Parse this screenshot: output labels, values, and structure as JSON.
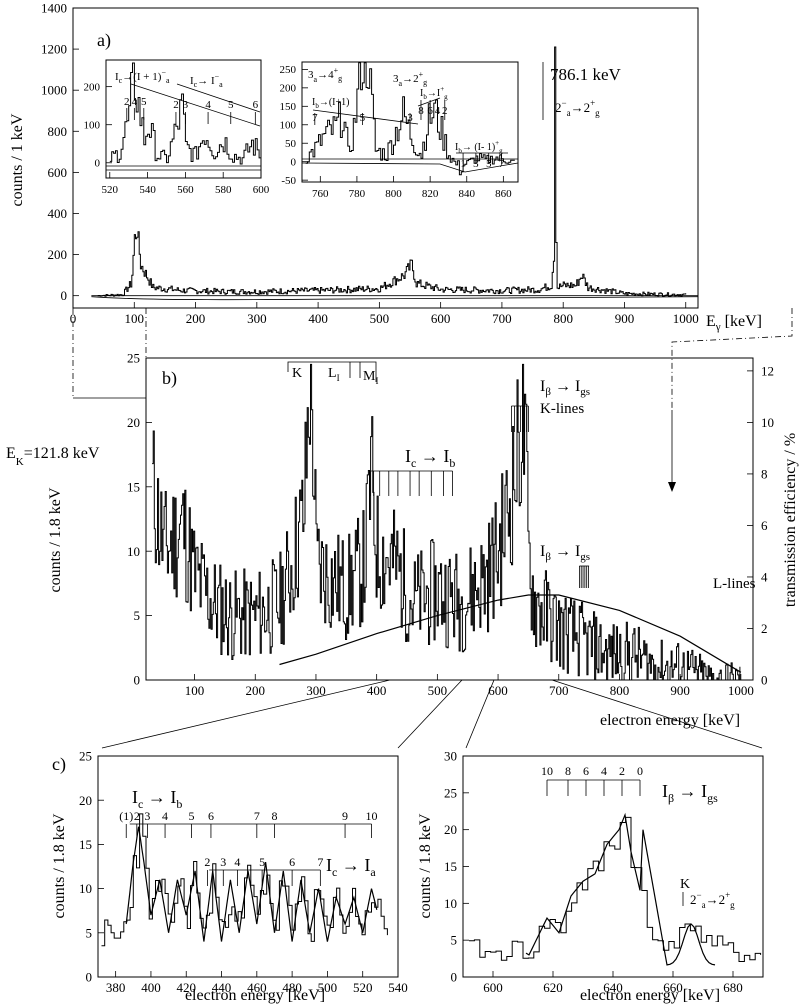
{
  "panels": {
    "a": {
      "label": "a)",
      "ylabel": "counts / 1 keV",
      "xlabel": "Eγ [keV]",
      "yticks": [
        "0",
        "200",
        "400",
        "600",
        "800",
        "1000",
        "1200",
        "1400"
      ],
      "xticks": [
        "0",
        "100",
        "200",
        "300",
        "400",
        "500",
        "600",
        "700",
        "800",
        "900",
        "1000"
      ],
      "peak_energy": "786.1 keV",
      "peak_transition": "2−a → 2+g",
      "inset1": {
        "yticks": [
          "0",
          "100",
          "200"
        ],
        "xticks": [
          "520",
          "540",
          "560",
          "580",
          "600"
        ],
        "band1": "Ic → (I+1)−a",
        "band2": "Ic → I−a",
        "spins1": [
          "2",
          "4",
          "5"
        ],
        "spins2": [
          "2",
          "3",
          "4",
          "5",
          "6"
        ]
      },
      "inset2": {
        "yticks": [
          "-50",
          "0",
          "50",
          "100",
          "150",
          "200",
          "250"
        ],
        "xticks": [
          "760",
          "780",
          "800",
          "820",
          "840",
          "860"
        ],
        "tr1": "3−a → 4+g",
        "tr2": "3−a → 2+g",
        "band1": "Ib → (I+1)",
        "band2": "Ib → I+g",
        "band3": "Ib → (I−1)+g",
        "spins1": [
          "7",
          "5",
          "3"
        ],
        "spins2": [
          "8",
          "6",
          "4",
          "2"
        ],
        "spins3": [
          "1",
          "3",
          "5",
          "7"
        ]
      }
    },
    "b": {
      "label": "b)",
      "ylabel": "counts / 1.8 keV",
      "ylabel_right": "transmission efficiency / %",
      "xlabel": "electron energy [keV]",
      "yticks": [
        "0",
        "5",
        "10",
        "15",
        "20",
        "25"
      ],
      "yticks_right": [
        "0",
        "2",
        "4",
        "6",
        "8",
        "10",
        "12"
      ],
      "xticks": [
        "100",
        "200",
        "300",
        "400",
        "500",
        "600",
        "700",
        "800",
        "900",
        "1000"
      ],
      "ek_label": "E",
      "ek_sub": "K",
      "ek_value": "=121.8 keV",
      "shells": [
        "K",
        "LI",
        "MI"
      ],
      "band_kgs": "Iβ → Igs",
      "klines": "K-lines",
      "band_cb": "Ic → Ib",
      "band_lgs": "Iβ → Igs",
      "llines": "L-lines"
    },
    "c1": {
      "label": "c)",
      "ylabel": "counts / 1.8 keV",
      "xlabel": "electron energy [keV]",
      "yticks": [
        "0",
        "5",
        "10",
        "15",
        "20",
        "25"
      ],
      "xticks": [
        "380",
        "400",
        "420",
        "440",
        "460",
        "480",
        "500",
        "520",
        "540"
      ],
      "band1": "Ic → Ib",
      "band2": "Ic → Ia",
      "spins1": [
        "(1)",
        "2",
        "3",
        "4",
        "5",
        "6",
        "7",
        "8",
        "9",
        "10"
      ],
      "spins2": [
        "2",
        "3",
        "4",
        "5",
        "6",
        "7"
      ]
    },
    "c2": {
      "ylabel": "counts / 1.8 keV",
      "xlabel": "electron energy [keV]",
      "yticks": [
        "0",
        "5",
        "10",
        "15",
        "20",
        "25",
        "30"
      ],
      "xticks": [
        "600",
        "620",
        "640",
        "660",
        "680"
      ],
      "band": "Iβ → Igs",
      "spins": [
        "10",
        "8",
        "6",
        "4",
        "2",
        "0"
      ],
      "k_label": "K",
      "k_transition": "2−a → 2+g"
    }
  },
  "chart_data": [
    {
      "type": "line",
      "title": "a)",
      "xlabel": "Eγ [keV]",
      "ylabel": "counts / 1 keV",
      "xlim": [
        0,
        1020
      ],
      "ylim": [
        -60,
        1400
      ],
      "series": [
        {
          "x": [
            40,
            80,
            95,
            100,
            104,
            110,
            130,
            180,
            250,
            300,
            400,
            500,
            540,
            552,
            560,
            600,
            700,
            760,
            780,
            784,
            786,
            788,
            790,
            800,
            820,
            830,
            840,
            900,
            1000
          ],
          "y": [
            0,
            5,
            60,
            280,
            320,
            150,
            40,
            25,
            20,
            20,
            25,
            35,
            100,
            150,
            60,
            30,
            25,
            30,
            50,
            200,
            1200,
            300,
            40,
            50,
            50,
            100,
            40,
            10,
            5
          ]
        }
      ],
      "annotations": [
        "786.1 keV",
        "2−a → 2+g"
      ]
    },
    {
      "type": "line",
      "title": "a) inset 1",
      "xlim": [
        518,
        600
      ],
      "ylim": [
        -40,
        270
      ],
      "series": [
        {
          "x": [
            520,
            525,
            530,
            532,
            535,
            538,
            540,
            545,
            550,
            555,
            558,
            560,
            565,
            570,
            575,
            580,
            585,
            590,
            595,
            600
          ],
          "y": [
            10,
            30,
            120,
            230,
            150,
            60,
            100,
            20,
            10,
            90,
            150,
            40,
            20,
            80,
            30,
            60,
            20,
            10,
            50,
            20
          ]
        }
      ]
    },
    {
      "type": "line",
      "title": "a) inset 2",
      "xlim": [
        750,
        868
      ],
      "ylim": [
        -55,
        270
      ],
      "series": [
        {
          "x": [
            752,
            758,
            762,
            768,
            772,
            775,
            778,
            782,
            786,
            790,
            796,
            800,
            805,
            810,
            815,
            818,
            822,
            826,
            830,
            836,
            840,
            846,
            850,
            856,
            860,
            866
          ],
          "y": [
            10,
            40,
            70,
            90,
            130,
            20,
            90,
            260,
            260,
            30,
            20,
            70,
            130,
            60,
            20,
            100,
            140,
            80,
            20,
            -20,
            0,
            10,
            5,
            10,
            5,
            0
          ]
        }
      ]
    },
    {
      "type": "line",
      "title": "b)",
      "xlabel": "electron energy [keV]",
      "ylabel": "counts / 1.8 keV",
      "ylabel_right": "transmission efficiency / %",
      "xlim": [
        20,
        1020
      ],
      "ylim": [
        0,
        25
      ],
      "y2lim": [
        0,
        12.5
      ],
      "series": [
        {
          "name": "counts",
          "x": [
            30,
            50,
            80,
            100,
            130,
            160,
            200,
            240,
            260,
            280,
            290,
            295,
            300,
            320,
            350,
            380,
            390,
            400,
            430,
            460,
            500,
            540,
            580,
            600,
            620,
            630,
            640,
            645,
            650,
            660,
            680,
            700,
            740,
            780,
            820,
            860,
            900,
            950,
            1000
          ],
          "y": [
            15,
            10,
            12,
            8,
            6,
            5,
            5,
            6,
            9,
            13,
            24,
            18,
            9,
            8,
            7,
            9,
            16,
            10,
            9,
            6,
            7,
            6,
            8,
            10,
            14,
            17,
            20,
            17,
            9,
            6,
            5,
            4,
            3,
            2,
            2,
            1,
            1,
            0,
            0
          ]
        },
        {
          "name": "transmission efficiency",
          "x": [
            240,
            300,
            400,
            500,
            600,
            650,
            700,
            800,
            900,
            1000
          ],
          "y": [
            0.6,
            1.0,
            1.8,
            2.5,
            3.1,
            3.3,
            3.3,
            2.7,
            1.7,
            0.3
          ]
        }
      ],
      "annotations": [
        "E K =121.8 keV",
        "K",
        "LI",
        "MI",
        "Iβ → Igs",
        "K-lines",
        "Ic → Ib",
        "L-lines"
      ]
    },
    {
      "type": "line",
      "title": "c) left",
      "xlabel": "electron energy [keV]",
      "ylabel": "counts / 1.8 keV",
      "xlim": [
        370,
        540
      ],
      "ylim": [
        0,
        25
      ],
      "series": [
        {
          "x": [
            372,
            380,
            386,
            390,
            393,
            396,
            400,
            405,
            410,
            415,
            420,
            425,
            430,
            435,
            440,
            445,
            450,
            455,
            460,
            465,
            470,
            475,
            480,
            485,
            490,
            495,
            500,
            505,
            510,
            515,
            520,
            525,
            530,
            535
          ],
          "y": [
            5,
            4,
            6,
            13,
            17,
            13,
            7,
            11,
            5,
            11,
            7,
            12,
            4,
            12,
            4,
            11,
            5,
            12,
            6,
            13,
            5,
            12,
            4,
            11,
            5,
            10,
            4,
            9,
            6,
            9,
            5,
            10,
            6,
            5
          ]
        }
      ]
    },
    {
      "type": "line",
      "title": "c) right",
      "xlabel": "electron energy [keV]",
      "ylabel": "counts / 1.8 keV",
      "xlim": [
        590,
        690
      ],
      "ylim": [
        0,
        30
      ],
      "series": [
        {
          "x": [
            592,
            600,
            608,
            612,
            618,
            622,
            626,
            630,
            634,
            638,
            642,
            644,
            646,
            650,
            652,
            656,
            660,
            664,
            666,
            670,
            676,
            682,
            690
          ],
          "y": [
            4,
            3,
            4,
            3,
            8,
            6,
            11,
            13,
            14,
            18,
            20,
            22,
            17,
            10,
            5,
            5,
            5,
            6,
            8,
            5,
            4,
            3,
            3
          ]
        }
      ],
      "annotations": [
        "K",
        "2−a → 2+g"
      ]
    }
  ]
}
